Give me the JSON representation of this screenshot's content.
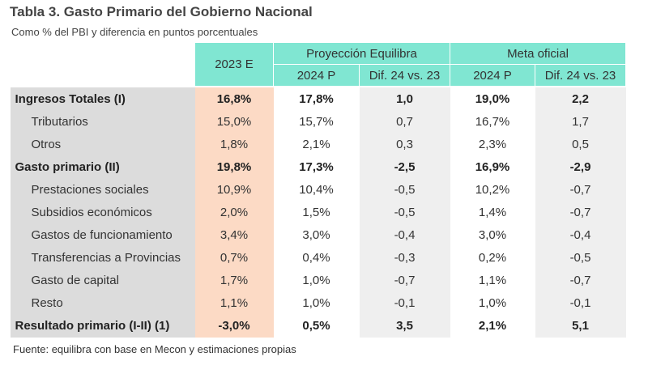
{
  "title": "Tabla 3. Gasto Primario del Gobierno Nacional",
  "subtitle": "Como % del PBI y diferencia en puntos porcentuales",
  "table": {
    "first_column": "2023 E",
    "groups": [
      {
        "title": "Proyección Equilibra",
        "columns": [
          "2024 P",
          "Dif. 24 vs. 23"
        ]
      },
      {
        "title": "Meta oficial",
        "columns": [
          "2024 P",
          "Dif. 24 vs. 23"
        ]
      }
    ],
    "rows": [
      [
        "Ingresos Totales (I)",
        "16,8%",
        "17,8%",
        "1,0",
        "19,0%",
        "2,2"
      ],
      [
        "Tributarios",
        "15,0%",
        "15,7%",
        "0,7",
        "16,7%",
        "1,7"
      ],
      [
        "Otros",
        "1,8%",
        "2,1%",
        "0,3",
        "2,3%",
        "0,5"
      ],
      [
        "Gasto primario (II)",
        "19,8%",
        "17,3%",
        "-2,5",
        "16,9%",
        "-2,9"
      ],
      [
        "Prestaciones sociales",
        "10,9%",
        "10,4%",
        "-0,5",
        "10,2%",
        "-0,7"
      ],
      [
        "Subsidios económicos",
        "2,0%",
        "1,5%",
        "-0,5",
        "1,4%",
        "-0,7"
      ],
      [
        "Gastos de funcionamiento",
        "3,4%",
        "3,0%",
        "-0,4",
        "3,0%",
        "-0,4"
      ],
      [
        "Transferencias a Provincias",
        "0,7%",
        "0,4%",
        "-0,3",
        "0,2%",
        "-0,5"
      ],
      [
        "Gasto de capital",
        "1,7%",
        "1,0%",
        "-0,7",
        "1,1%",
        "-0,7"
      ],
      [
        "Resto",
        "1,1%",
        "1,0%",
        "-0,1",
        "1,0%",
        "-0,1"
      ],
      [
        "Resultado primario (I-II) (1)",
        "-3,0%",
        "0,5%",
        "3,5",
        "2,1%",
        "5,1"
      ]
    ]
  },
  "source": "Fuente: equilibra con base en Mecon y estimaciones propias"
}
